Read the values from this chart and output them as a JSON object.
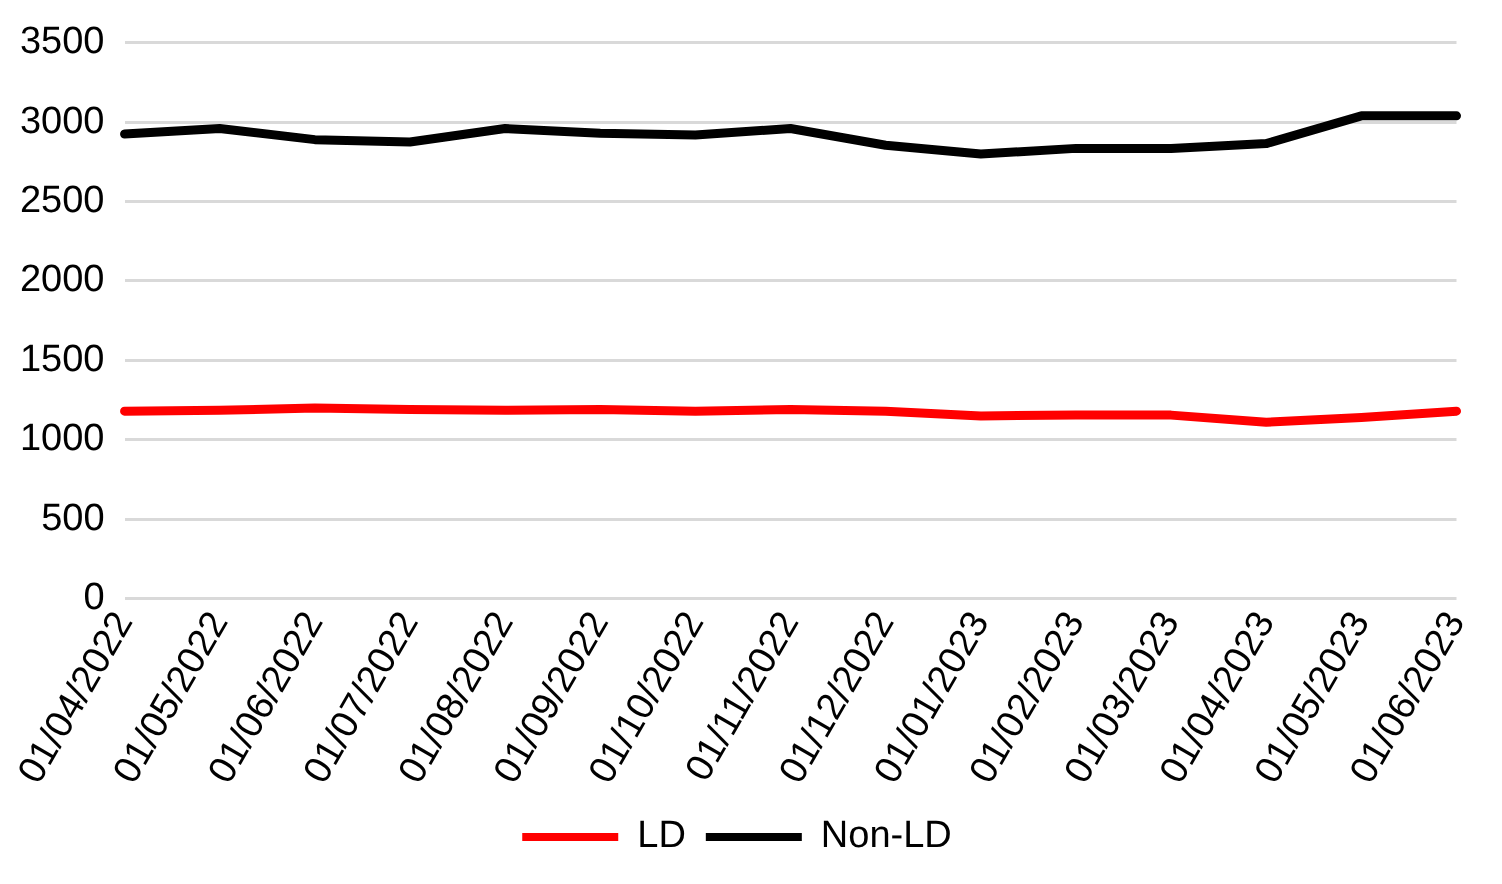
{
  "chart_data": {
    "type": "line",
    "categories": [
      "01/04/2022",
      "01/05/2022",
      "01/06/2022",
      "01/07/2022",
      "01/08/2022",
      "01/09/2022",
      "01/10/2022",
      "01/11/2022",
      "01/12/2022",
      "01/01/2023",
      "01/02/2023",
      "01/03/2023",
      "01/04/2023",
      "01/05/2023",
      "01/06/2023"
    ],
    "series": [
      {
        "name": "LD",
        "color": "#ff0000",
        "values": [
          1180,
          1185,
          1200,
          1190,
          1185,
          1190,
          1180,
          1190,
          1180,
          1150,
          1155,
          1155,
          1110,
          1140,
          1180
        ]
      },
      {
        "name": "Non-LD",
        "color": "#000000",
        "values": [
          2925,
          2960,
          2890,
          2875,
          2960,
          2930,
          2920,
          2960,
          2855,
          2800,
          2835,
          2835,
          2865,
          3040,
          3040
        ]
      }
    ],
    "ylim": [
      0,
      3500
    ],
    "yticks": [
      0,
      500,
      1000,
      1500,
      2000,
      2500,
      3000,
      3500
    ],
    "grid": "y",
    "legend": "bottom",
    "marker": "none",
    "line_style": "solid"
  }
}
